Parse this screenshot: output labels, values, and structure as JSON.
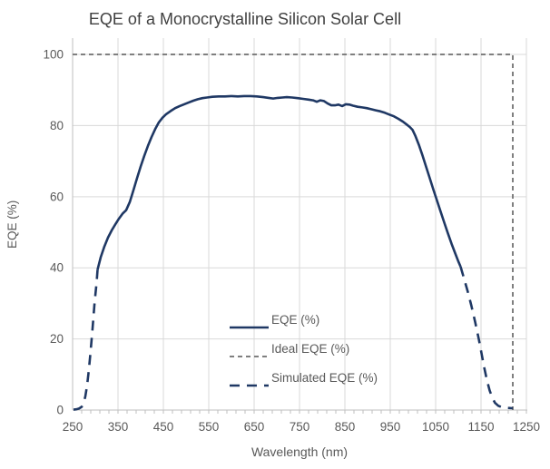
{
  "chart_data": {
    "type": "line",
    "title": "EQE of a Monocrystalline Silicon Solar Cell",
    "xlabel": "Wavelength (nm)",
    "ylabel": "EQE (%)",
    "xlim": [
      250,
      1250
    ],
    "ylim": [
      0,
      104.6
    ],
    "x_ticks": [
      250,
      350,
      450,
      550,
      650,
      750,
      850,
      950,
      1050,
      1150,
      1250
    ],
    "y_ticks": [
      0,
      20,
      40,
      60,
      80,
      100
    ],
    "x_minor_tick_step": 20,
    "grid": true,
    "legend_position": "inside bottom-center",
    "colors": {
      "navy": "#1f3864",
      "ideal_gray": "#7f7f7f",
      "grid": "#d9d9d9",
      "axis_line": "#bfbfbf",
      "axis_text": "#595959",
      "title_text": "#404040"
    },
    "series": [
      {
        "name": "EQE (%)",
        "color": "#1f3864",
        "width": 2.6,
        "dash": "solid",
        "segments": [
          [
            [
              305,
              39.5
            ],
            [
              312,
              43
            ],
            [
              320,
              46
            ],
            [
              328,
              48.5
            ],
            [
              336,
              50.5
            ],
            [
              344,
              52.2
            ],
            [
              352,
              53.8
            ],
            [
              360,
              55.2
            ],
            [
              368,
              56.2
            ],
            [
              376,
              58.5
            ],
            [
              384,
              61.8
            ],
            [
              392,
              65.2
            ],
            [
              400,
              68.5
            ],
            [
              408,
              71.5
            ],
            [
              416,
              74.3
            ],
            [
              424,
              76.8
            ],
            [
              432,
              79
            ],
            [
              440,
              80.9
            ],
            [
              448,
              82.2
            ],
            [
              456,
              83.2
            ],
            [
              466,
              84.1
            ],
            [
              476,
              84.9
            ],
            [
              486,
              85.5
            ],
            [
              496,
              86
            ],
            [
              506,
              86.5
            ],
            [
              516,
              87
            ],
            [
              526,
              87.4
            ],
            [
              536,
              87.7
            ],
            [
              546,
              87.9
            ],
            [
              558,
              88.1
            ],
            [
              572,
              88.2
            ],
            [
              586,
              88.2
            ],
            [
              600,
              88.3
            ],
            [
              614,
              88.2
            ],
            [
              628,
              88.3
            ],
            [
              642,
              88.3
            ],
            [
              656,
              88.2
            ],
            [
              670,
              88
            ],
            [
              682,
              87.8
            ],
            [
              692,
              87.6
            ],
            [
              702,
              87.8
            ],
            [
              712,
              87.9
            ],
            [
              722,
              88
            ],
            [
              734,
              87.9
            ],
            [
              746,
              87.7
            ],
            [
              758,
              87.5
            ],
            [
              770,
              87.3
            ],
            [
              780,
              87.1
            ],
            [
              788,
              86.7
            ],
            [
              796,
              87.1
            ],
            [
              804,
              86.9
            ],
            [
              812,
              86.2
            ],
            [
              820,
              85.7
            ],
            [
              828,
              85.7
            ],
            [
              836,
              85.9
            ],
            [
              844,
              85.5
            ],
            [
              852,
              86
            ],
            [
              860,
              85.9
            ],
            [
              868,
              85.6
            ],
            [
              878,
              85.3
            ],
            [
              888,
              85.1
            ],
            [
              898,
              84.9
            ],
            [
              908,
              84.6
            ],
            [
              918,
              84.3
            ],
            [
              928,
              84
            ],
            [
              938,
              83.6
            ],
            [
              948,
              83.1
            ],
            [
              958,
              82.6
            ],
            [
              968,
              81.9
            ],
            [
              978,
              81.1
            ],
            [
              986,
              80.3
            ],
            [
              993,
              79.6
            ],
            [
              999,
              78.8
            ],
            [
              1005,
              77.2
            ],
            [
              1013,
              74.6
            ],
            [
              1021,
              71.6
            ],
            [
              1029,
              68.4
            ],
            [
              1037,
              65.2
            ],
            [
              1045,
              62
            ],
            [
              1053,
              58.9
            ],
            [
              1061,
              55.8
            ],
            [
              1069,
              52.7
            ],
            [
              1077,
              49.7
            ],
            [
              1085,
              46.8
            ],
            [
              1093,
              44.1
            ],
            [
              1100,
              41.8
            ],
            [
              1105,
              40.3
            ]
          ]
        ]
      },
      {
        "name": "Ideal EQE (%)",
        "color": "#7f7f7f",
        "width": 2,
        "dash": "short",
        "segments": [
          [
            [
              250,
              100
            ],
            [
              1220,
              100
            ],
            [
              1220,
              0
            ]
          ]
        ]
      },
      {
        "name": "Simulated EQE (%)",
        "color": "#1f3864",
        "width": 2.6,
        "dash": "long",
        "segments": [
          [
            [
              252,
              0.1
            ],
            [
              258,
              0.2
            ],
            [
              264,
              0.4
            ],
            [
              270,
              0.9
            ],
            [
              274,
              1.8
            ],
            [
              278,
              3.8
            ],
            [
              282,
              7
            ],
            [
              286,
              11.5
            ],
            [
              290,
              17
            ],
            [
              294,
              23
            ],
            [
              298,
              29.5
            ],
            [
              301,
              33.5
            ],
            [
              303,
              36
            ],
            [
              305,
              39.5
            ]
          ],
          [
            [
              1105,
              40.3
            ],
            [
              1113,
              36.8
            ],
            [
              1121,
              33.2
            ],
            [
              1129,
              29.2
            ],
            [
              1137,
              24.8
            ],
            [
              1145,
              20
            ],
            [
              1151,
              16
            ],
            [
              1157,
              12
            ],
            [
              1163,
              8.4
            ],
            [
              1169,
              5.5
            ],
            [
              1175,
              3.4
            ],
            [
              1181,
              2
            ],
            [
              1188,
              1.2
            ],
            [
              1196,
              0.8
            ],
            [
              1206,
              0.6
            ],
            [
              1220,
              0.5
            ]
          ]
        ]
      }
    ]
  }
}
